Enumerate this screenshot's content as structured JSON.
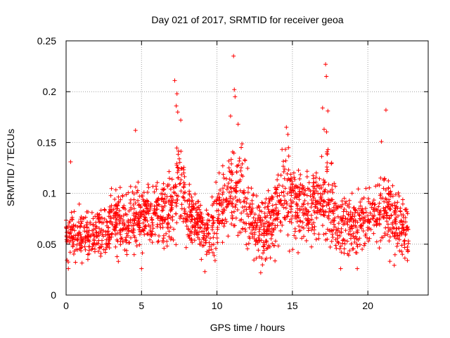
{
  "chart_data": {
    "type": "scatter",
    "title": "Day 021 of 2017, SRMTID for receiver geoa",
    "xlabel": "GPS time / hours",
    "ylabel": "SRMTID / TECUs",
    "xlim": [
      0,
      24
    ],
    "ylim": [
      0,
      0.25
    ],
    "xticks": [
      0,
      5,
      10,
      15,
      20
    ],
    "xtick_labels": [
      "0",
      "5",
      "10",
      "15",
      "20"
    ],
    "yticks": [
      0,
      0.05,
      0.1,
      0.15,
      0.2,
      0.25
    ],
    "ytick_labels": [
      "0",
      "0.05",
      "0.1",
      "0.15",
      "0.2",
      "0.25"
    ],
    "grid": true,
    "marker": "plus",
    "color": "#ff0000",
    "x_extent": [
      0,
      22.7
    ],
    "approx_point_count": 2000,
    "envelope": {
      "x": [
        0,
        1,
        2,
        3,
        4,
        5,
        6,
        7,
        7.5,
        8,
        9,
        9.5,
        10,
        11,
        11.5,
        12,
        13,
        14,
        14.7,
        15,
        16,
        17,
        17.3,
        18,
        19,
        20,
        21,
        22,
        22.7
      ],
      "center": [
        0.06,
        0.055,
        0.06,
        0.07,
        0.075,
        0.075,
        0.08,
        0.085,
        0.11,
        0.08,
        0.065,
        0.055,
        0.08,
        0.1,
        0.1,
        0.085,
        0.06,
        0.085,
        0.1,
        0.09,
        0.08,
        0.095,
        0.1,
        0.07,
        0.065,
        0.075,
        0.085,
        0.075,
        0.06
      ],
      "spread": [
        0.02,
        0.02,
        0.02,
        0.022,
        0.025,
        0.025,
        0.025,
        0.03,
        0.04,
        0.025,
        0.02,
        0.02,
        0.03,
        0.035,
        0.04,
        0.03,
        0.025,
        0.03,
        0.035,
        0.03,
        0.025,
        0.03,
        0.04,
        0.025,
        0.025,
        0.025,
        0.03,
        0.025,
        0.02
      ]
    },
    "outliers": [
      {
        "x": 4.6,
        "y": 0.162
      },
      {
        "x": 7.2,
        "y": 0.211
      },
      {
        "x": 7.35,
        "y": 0.198
      },
      {
        "x": 7.3,
        "y": 0.186
      },
      {
        "x": 7.4,
        "y": 0.18
      },
      {
        "x": 7.6,
        "y": 0.172
      },
      {
        "x": 11.1,
        "y": 0.235
      },
      {
        "x": 11.15,
        "y": 0.202
      },
      {
        "x": 11.2,
        "y": 0.195
      },
      {
        "x": 10.9,
        "y": 0.176
      },
      {
        "x": 11.4,
        "y": 0.168
      },
      {
        "x": 14.6,
        "y": 0.165
      },
      {
        "x": 14.7,
        "y": 0.158
      },
      {
        "x": 17.2,
        "y": 0.227
      },
      {
        "x": 17.25,
        "y": 0.215
      },
      {
        "x": 17.0,
        "y": 0.184
      },
      {
        "x": 17.35,
        "y": 0.181
      },
      {
        "x": 17.1,
        "y": 0.163
      },
      {
        "x": 21.2,
        "y": 0.182
      },
      {
        "x": 20.9,
        "y": 0.151
      },
      {
        "x": 0.3,
        "y": 0.131
      },
      {
        "x": 0.15,
        "y": 0.026
      },
      {
        "x": 5.0,
        "y": 0.026
      },
      {
        "x": 9.2,
        "y": 0.023
      },
      {
        "x": 12.9,
        "y": 0.022
      },
      {
        "x": 18.2,
        "y": 0.026
      },
      {
        "x": 19.3,
        "y": 0.026
      }
    ]
  }
}
